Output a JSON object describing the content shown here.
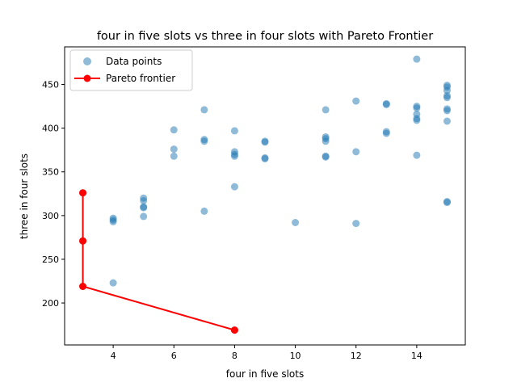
{
  "chart_data": {
    "type": "scatter",
    "title": "four in five slots vs three in four slots with Pareto Frontier",
    "xlabel": "four in five slots",
    "ylabel": "three in four slots",
    "xlim": [
      2.4,
      15.6
    ],
    "ylim": [
      152,
      493
    ],
    "x_ticks": [
      4,
      6,
      8,
      10,
      12,
      14
    ],
    "y_ticks": [
      200,
      250,
      300,
      350,
      400,
      450
    ],
    "grid": false,
    "legend_position": "top-left",
    "series": [
      {
        "name": "Data points",
        "kind": "scatter",
        "color": "#1f77b4",
        "alpha": 0.5,
        "points": [
          [
            3,
            326
          ],
          [
            3,
            271
          ],
          [
            3,
            219
          ],
          [
            4,
            297
          ],
          [
            4,
            295
          ],
          [
            4,
            293
          ],
          [
            4,
            223
          ],
          [
            5,
            320
          ],
          [
            5,
            317
          ],
          [
            5,
            310
          ],
          [
            5,
            309
          ],
          [
            5,
            299
          ],
          [
            6,
            398
          ],
          [
            6,
            376
          ],
          [
            6,
            368
          ],
          [
            7,
            421
          ],
          [
            7,
            387
          ],
          [
            7,
            385
          ],
          [
            7,
            305
          ],
          [
            8,
            397
          ],
          [
            8,
            373
          ],
          [
            8,
            370
          ],
          [
            8,
            368
          ],
          [
            8,
            333
          ],
          [
            8,
            169
          ],
          [
            9,
            385
          ],
          [
            9,
            384
          ],
          [
            9,
            366
          ],
          [
            9,
            365
          ],
          [
            10,
            292
          ],
          [
            11,
            421
          ],
          [
            11,
            390
          ],
          [
            11,
            388
          ],
          [
            11,
            385
          ],
          [
            11,
            368
          ],
          [
            11,
            367
          ],
          [
            12,
            431
          ],
          [
            12,
            373
          ],
          [
            12,
            291
          ],
          [
            13,
            428
          ],
          [
            13,
            427
          ],
          [
            13,
            396
          ],
          [
            13,
            394
          ],
          [
            14,
            479
          ],
          [
            14,
            425
          ],
          [
            14,
            423
          ],
          [
            14,
            416
          ],
          [
            14,
            411
          ],
          [
            14,
            409
          ],
          [
            14,
            369
          ],
          [
            15,
            449
          ],
          [
            15,
            447
          ],
          [
            15,
            443
          ],
          [
            15,
            437
          ],
          [
            15,
            435
          ],
          [
            15,
            422
          ],
          [
            15,
            420
          ],
          [
            15,
            408
          ],
          [
            15,
            316
          ],
          [
            15,
            315
          ]
        ]
      },
      {
        "name": "Pareto frontier",
        "kind": "line",
        "color": "#ff0000",
        "points": [
          [
            3,
            326
          ],
          [
            3,
            271
          ],
          [
            3,
            219
          ],
          [
            8,
            169
          ]
        ]
      }
    ]
  }
}
